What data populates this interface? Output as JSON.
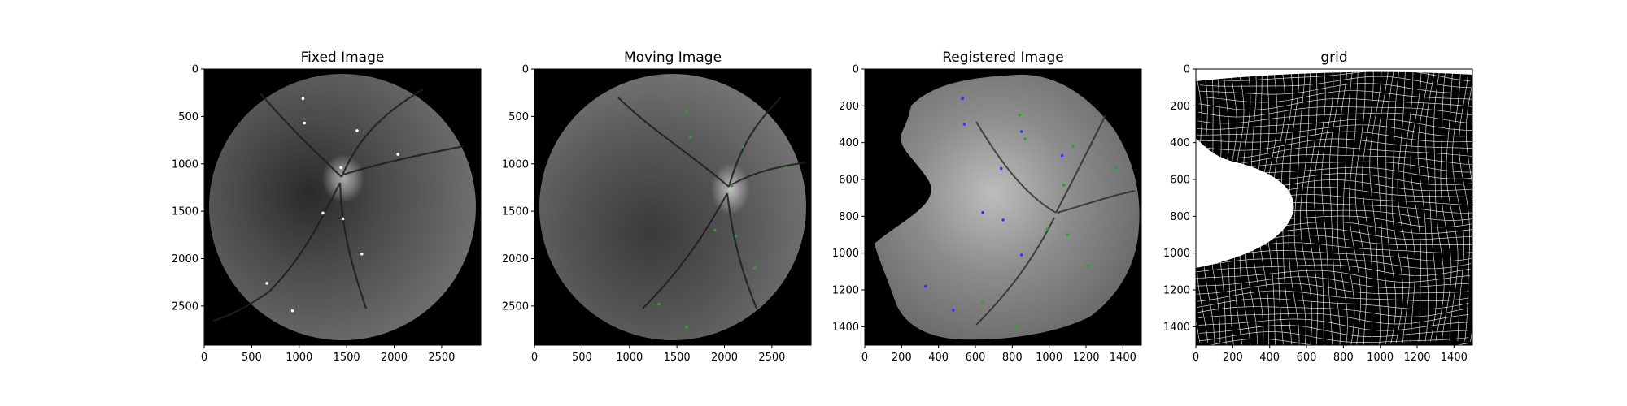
{
  "figure": {
    "background": "#ffffff",
    "panel_count": 4
  },
  "chart_data": [
    {
      "type": "image",
      "title": "Fixed Image",
      "xlim": [
        0,
        2912
      ],
      "ylim": [
        2912,
        0
      ],
      "xticks": [
        0,
        500,
        1000,
        1500,
        2000,
        2500
      ],
      "yticks": [
        0,
        500,
        1000,
        1500,
        2000,
        2500
      ],
      "content": "retinal fundus photograph (grayscale), circular field of view, optic disc near x≈1450, y≈1150",
      "landmark_color": "#ffffff",
      "landmarks": [
        [
          1040,
          310
        ],
        [
          1055,
          570
        ],
        [
          1610,
          650
        ],
        [
          2040,
          900
        ],
        [
          1440,
          1040
        ],
        [
          1250,
          1520
        ],
        [
          1460,
          1580
        ],
        [
          1660,
          1950
        ],
        [
          660,
          2260
        ],
        [
          930,
          2550
        ]
      ]
    },
    {
      "type": "image",
      "title": "Moving Image",
      "xlim": [
        0,
        2912
      ],
      "ylim": [
        2912,
        0
      ],
      "xticks": [
        0,
        500,
        1000,
        1500,
        2000,
        2500
      ],
      "yticks": [
        0,
        500,
        1000,
        1500,
        2000,
        2500
      ],
      "content": "retinal fundus photograph (grayscale), circular field of view, optic disc near x≈2100, y≈1250",
      "landmark_color": "#2ca02c",
      "landmarks": [
        [
          1600,
          450
        ],
        [
          1640,
          720
        ],
        [
          2190,
          820
        ],
        [
          2650,
          1040
        ],
        [
          2080,
          1230
        ],
        [
          1900,
          1700
        ],
        [
          2120,
          1760
        ],
        [
          2320,
          2100
        ],
        [
          1310,
          2480
        ],
        [
          1600,
          2720
        ]
      ]
    },
    {
      "type": "image",
      "title": "Registered Image",
      "xlim": [
        0,
        1500
      ],
      "ylim": [
        1500,
        0
      ],
      "xticks": [
        0,
        200,
        400,
        600,
        800,
        1000,
        1200,
        1400
      ],
      "yticks": [
        0,
        200,
        400,
        600,
        800,
        1000,
        1200,
        1400
      ],
      "content": "warped moving fundus image with irregular black boundary",
      "series": [
        {
          "color": "#3333ff",
          "points": [
            [
              530,
              160
            ],
            [
              540,
              300
            ],
            [
              850,
              340
            ],
            [
              1070,
              470
            ],
            [
              740,
              540
            ],
            [
              640,
              780
            ],
            [
              750,
              820
            ],
            [
              850,
              1010
            ],
            [
              330,
              1180
            ],
            [
              480,
              1310
            ]
          ]
        },
        {
          "color": "#2ca02c",
          "points": [
            [
              840,
              250
            ],
            [
              870,
              380
            ],
            [
              1130,
              420
            ],
            [
              1360,
              540
            ],
            [
              1080,
              630
            ],
            [
              990,
              870
            ],
            [
              1100,
              900
            ],
            [
              1210,
              1070
            ],
            [
              640,
              1270
            ],
            [
              820,
              1400
            ]
          ]
        }
      ]
    },
    {
      "type": "image",
      "title": "grid",
      "xlim": [
        0,
        1500
      ],
      "ylim": [
        1500,
        0
      ],
      "xticks": [
        0,
        200,
        400,
        600,
        800,
        1000,
        1200,
        1400
      ],
      "yticks": [
        0,
        200,
        400,
        600,
        800,
        1000,
        1200,
        1400
      ],
      "content": "deformed white grid lines on black background"
    }
  ]
}
